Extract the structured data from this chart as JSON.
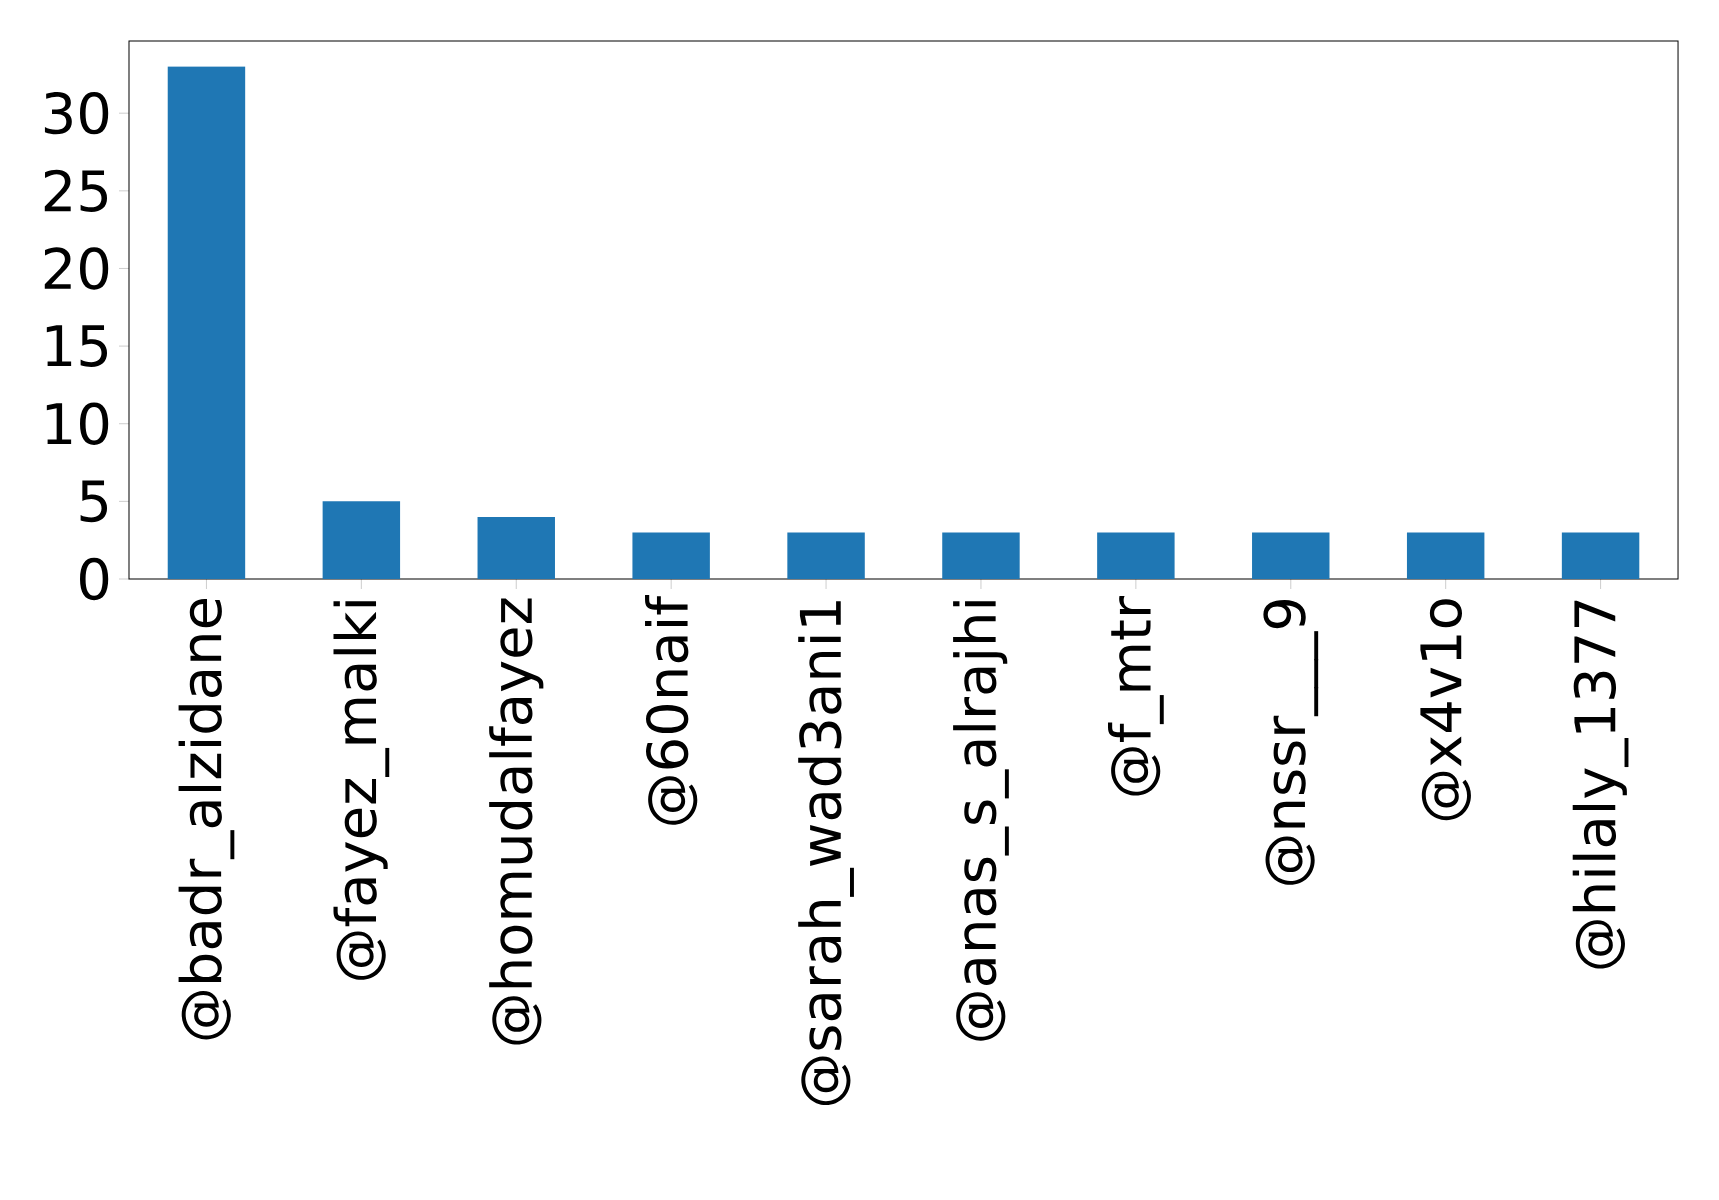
{
  "chart_data": {
    "type": "bar",
    "categories": [
      "@badr_alzidane",
      "@fayez_malki",
      "@homudalfayez",
      "@60naif",
      "@sarah_wad3ani1",
      "@anas_s_alrajhi",
      "@f_mtr",
      "@nssr___9",
      "@x4v1o",
      "@hilaly_1377"
    ],
    "values": [
      33,
      5,
      4,
      3,
      3,
      3,
      3,
      3,
      3,
      3
    ],
    "color": "#1f77b4",
    "ylim": [
      0,
      34.65
    ],
    "yticks": [
      0,
      5,
      10,
      15,
      20,
      25,
      30
    ]
  }
}
